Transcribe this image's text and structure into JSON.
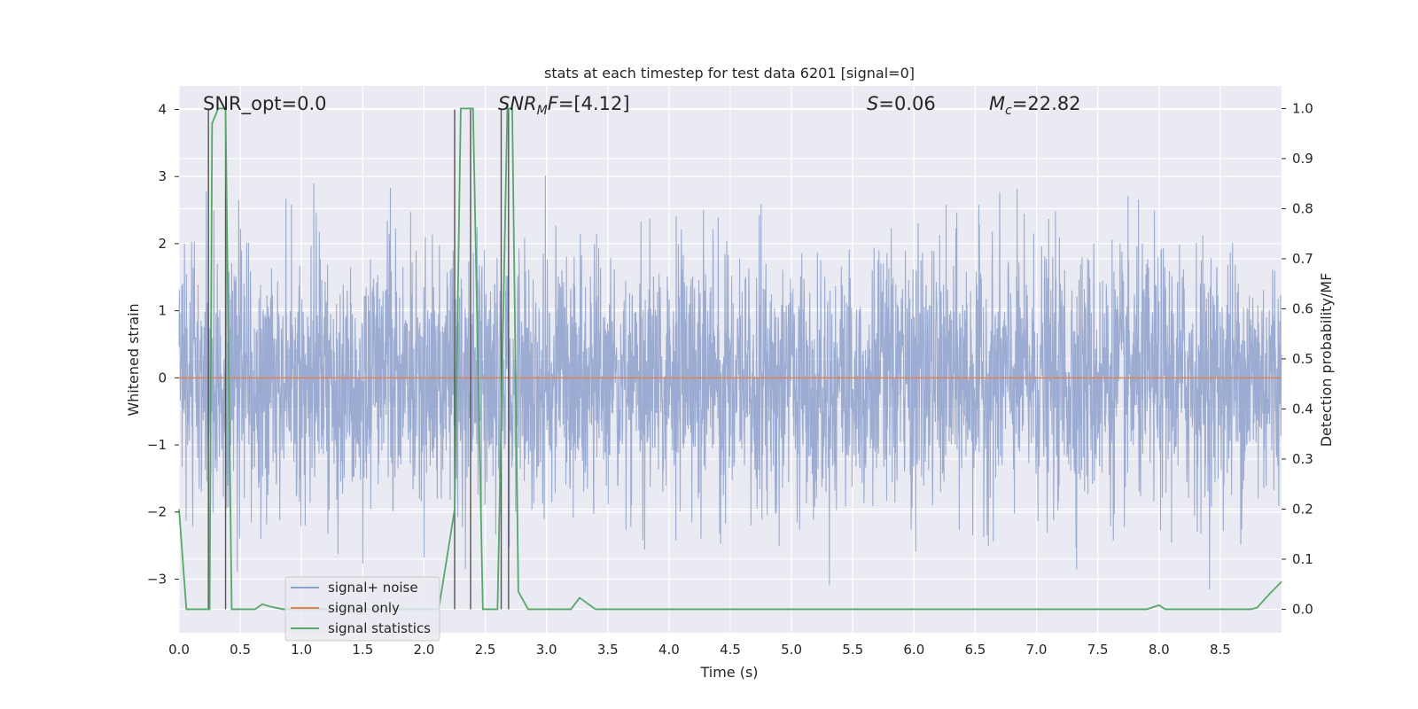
{
  "chart_data": {
    "type": "line",
    "title": "stats at each timestep for test data 6201 [signal=0]",
    "xlabel": "Time (s)",
    "ylabel": "Whitened strain",
    "ylabel_right": "Detection probability/MF",
    "xlim": [
      0.0,
      9.0
    ],
    "ylim": [
      -3.8,
      4.35
    ],
    "ylim_right": [
      -0.047,
      1.045
    ],
    "x_ticks": [
      "0.0",
      "0.5",
      "1.0",
      "1.5",
      "2.0",
      "2.5",
      "3.0",
      "3.5",
      "4.0",
      "4.5",
      "5.0",
      "5.5",
      "6.0",
      "6.5",
      "7.0",
      "7.5",
      "8.0",
      "8.5"
    ],
    "y_ticks": [
      "4",
      "3",
      "2",
      "1",
      "0",
      "−1",
      "−2",
      "−3"
    ],
    "y_ticks_right": [
      "1.0",
      "0.9",
      "0.8",
      "0.7",
      "0.6",
      "0.5",
      "0.4",
      "0.3",
      "0.2",
      "0.1",
      "0.0"
    ],
    "annotations": {
      "snr_opt": "SNR_opt=0.0",
      "snr_mf_base": "SNR",
      "snr_mf_sub": "M",
      "snr_mf_rest_it": "F",
      "snr_mf_value": "=[4.12]",
      "s_var": "S",
      "s_value": "=0.06",
      "mc_base": "M",
      "mc_sub": "c",
      "mc_value": "=22.82"
    },
    "legend": {
      "position": "lower-left",
      "entries": [
        "signal+ noise",
        "signal only",
        "signal statistics"
      ]
    },
    "colors": {
      "noise": "#8da0cb",
      "signal_only": "#dd8452",
      "statistics": "#55a868",
      "marker": "#555555",
      "background": "#eaeaf2",
      "grid": "#ffffff"
    },
    "series": [
      {
        "name": "signal+ noise",
        "description_free": true,
        "envelope_note": "",
        "values_range": [
          -3.3,
          4.0
        ]
      },
      {
        "name": "signal only",
        "x": [
          0.0,
          9.0
        ],
        "y": [
          0.0,
          0.0
        ]
      },
      {
        "name": "signal statistics",
        "axis": "right",
        "x": [
          0.0,
          0.06,
          0.25,
          0.27,
          0.32,
          0.38,
          0.43,
          0.5,
          0.62,
          0.68,
          0.75,
          0.85,
          1.0,
          2.12,
          2.25,
          2.3,
          2.4,
          2.48,
          2.55,
          2.6,
          2.68,
          2.72,
          2.77,
          2.85,
          3.0,
          3.2,
          3.27,
          3.4,
          3.6,
          4.0,
          6.0,
          7.9,
          8.0,
          8.05,
          8.1,
          8.75,
          8.8,
          8.9,
          9.0
        ],
        "y": [
          0.2,
          0.0,
          0.0,
          0.97,
          1.0,
          1.0,
          0.0,
          0.0,
          0.0,
          0.01,
          0.005,
          0.0,
          0.0,
          0.0,
          0.2,
          1.0,
          1.0,
          0.0,
          0.0,
          0.0,
          1.0,
          1.0,
          0.035,
          0.0,
          0.0,
          0.0,
          0.023,
          0.0,
          0.0,
          0.0,
          0.0,
          0.0,
          0.008,
          0.0,
          0.0,
          0.0,
          0.003,
          0.03,
          0.055
        ]
      }
    ],
    "markers_x": [
      0.24,
      0.38,
      2.25,
      2.38,
      2.63,
      2.69
    ]
  }
}
